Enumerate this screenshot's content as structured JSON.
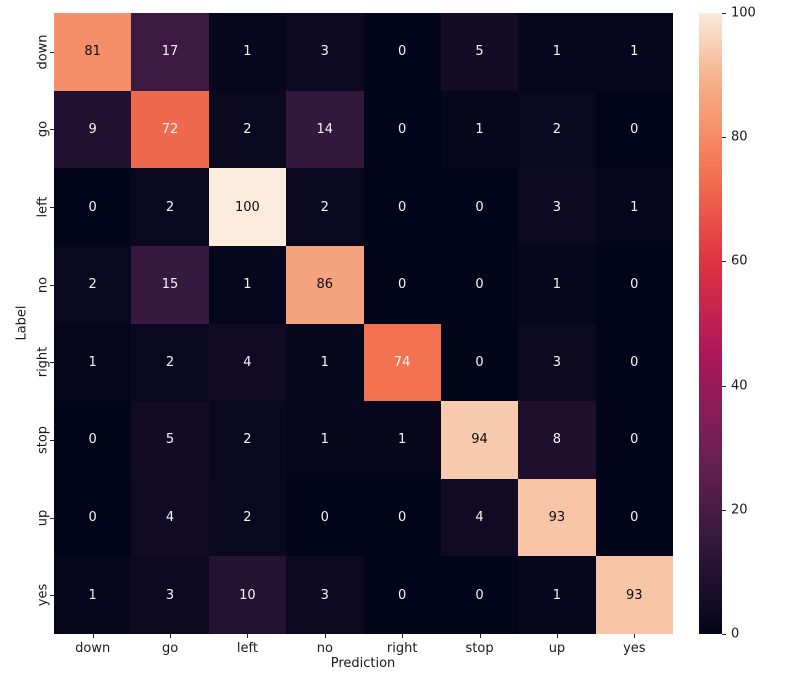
{
  "figure": {
    "background": "#ffffff"
  },
  "chart_data": {
    "type": "heatmap",
    "title": "",
    "xlabel": "Prediction",
    "ylabel": "Label",
    "categories_x": [
      "down",
      "go",
      "left",
      "no",
      "right",
      "stop",
      "up",
      "yes"
    ],
    "categories_y": [
      "down",
      "go",
      "left",
      "no",
      "right",
      "stop",
      "up",
      "yes"
    ],
    "values": [
      [
        81,
        17,
        1,
        3,
        0,
        5,
        1,
        1
      ],
      [
        9,
        72,
        2,
        14,
        0,
        1,
        2,
        0
      ],
      [
        0,
        2,
        100,
        2,
        0,
        0,
        3,
        1
      ],
      [
        2,
        15,
        1,
        86,
        0,
        0,
        1,
        0
      ],
      [
        1,
        2,
        4,
        1,
        74,
        0,
        3,
        0
      ],
      [
        0,
        5,
        2,
        1,
        1,
        94,
        8,
        0
      ],
      [
        0,
        4,
        2,
        0,
        0,
        4,
        93,
        0
      ],
      [
        1,
        3,
        10,
        3,
        0,
        0,
        1,
        93
      ]
    ],
    "vmin": 0,
    "vmax": 100,
    "colorbar_ticks": [
      0,
      20,
      40,
      60,
      80,
      100
    ],
    "colorbar_position": "right",
    "grid": false,
    "annotated": true,
    "annotation_colors": {
      "dark_text": "#0f0f0f",
      "light_text": "#f5f5f5"
    },
    "colormap": {
      "name": "rocket",
      "stops": [
        {
          "t": 0.0,
          "color": "#03051A"
        },
        {
          "t": 0.15,
          "color": "#35193E"
        },
        {
          "t": 0.3,
          "color": "#701F57"
        },
        {
          "t": 0.45,
          "color": "#AD1759"
        },
        {
          "t": 0.6,
          "color": "#E13342"
        },
        {
          "t": 0.75,
          "color": "#F37651"
        },
        {
          "t": 0.9,
          "color": "#F6B48F"
        },
        {
          "t": 1.0,
          "color": "#FAEBDD"
        }
      ]
    }
  }
}
